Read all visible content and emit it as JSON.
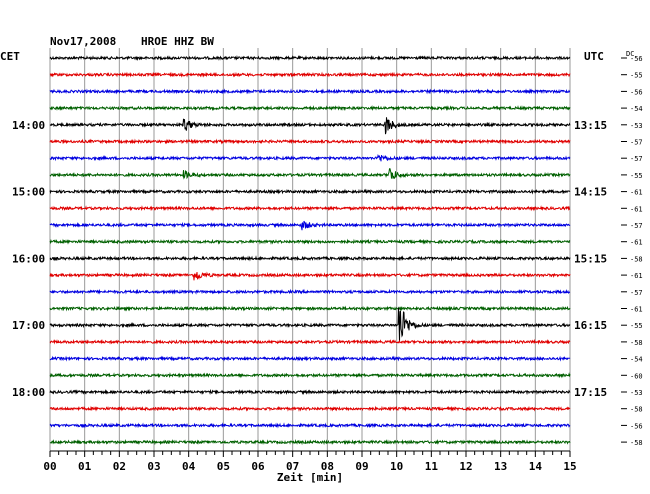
{
  "header": {
    "date": "Nov17,2008",
    "station": "HROE HHZ BW",
    "left_tz": "CET",
    "right_tz": "UTC",
    "dc_label": "DC"
  },
  "chart_data": {
    "type": "line",
    "title": "Nov17,2008   HROE HHZ BW",
    "xlabel": "Zeit [min]",
    "xlim": [
      0,
      15
    ],
    "x_ticks": [
      "00",
      "01",
      "02",
      "03",
      "04",
      "05",
      "06",
      "07",
      "08",
      "09",
      "10",
      "11",
      "12",
      "13",
      "14",
      "15"
    ],
    "grid": true,
    "trace_colors": [
      "#000000",
      "#e00000",
      "#0000e0",
      "#006000"
    ],
    "left_hour_labels": [
      {
        "trace": 4,
        "text": "14:00"
      },
      {
        "trace": 8,
        "text": "15:00"
      },
      {
        "trace": 12,
        "text": "16:00"
      },
      {
        "trace": 16,
        "text": "17:00"
      },
      {
        "trace": 20,
        "text": "18:00"
      }
    ],
    "right_time_labels": [
      {
        "trace": 4,
        "text": "13:15"
      },
      {
        "trace": 8,
        "text": "14:15"
      },
      {
        "trace": 12,
        "text": "15:15"
      },
      {
        "trace": 16,
        "text": "16:15"
      },
      {
        "trace": 20,
        "text": "17:15"
      }
    ],
    "dc_offsets": [
      -56,
      -55,
      -56,
      -54,
      -53,
      -57,
      -57,
      -55,
      -61,
      -61,
      -57,
      -61,
      -58,
      -61,
      -57,
      -61,
      -55,
      -58,
      -54,
      -60,
      -53,
      -58,
      -56,
      -58
    ],
    "events": [
      {
        "trace": 4,
        "minute": 3.9,
        "amplitude": 2
      },
      {
        "trace": 4,
        "minute": 9.7,
        "amplitude": 3
      },
      {
        "trace": 6,
        "minute": 9.5,
        "amplitude": 1.2
      },
      {
        "trace": 7,
        "minute": 9.8,
        "amplitude": 2.5
      },
      {
        "trace": 7,
        "minute": 3.9,
        "amplitude": 1.2
      },
      {
        "trace": 10,
        "minute": 7.3,
        "amplitude": 1.5
      },
      {
        "trace": 13,
        "minute": 4.2,
        "amplitude": 1.8
      },
      {
        "trace": 16,
        "minute": 10.1,
        "amplitude": 8
      },
      {
        "trace": 24,
        "minute": 14.9,
        "amplitude": 1
      }
    ]
  }
}
